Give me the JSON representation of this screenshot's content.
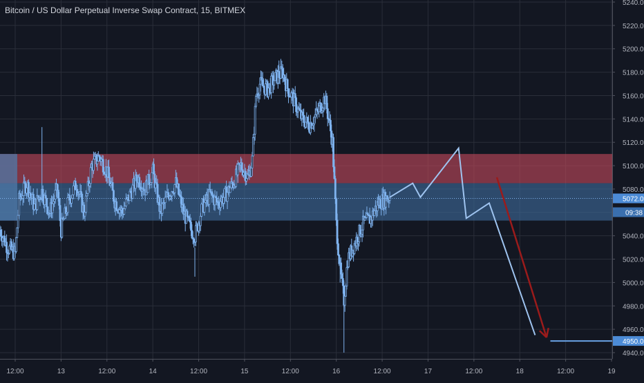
{
  "chart_data": {
    "type": "candlestick",
    "title": "Bitcoin / US Dollar Perpetual Inverse Swap Contract, 15, BITMEX",
    "ylim": [
      4935,
      5243
    ],
    "y_ticks": [
      5240,
      5220,
      5200,
      5180,
      5160,
      5140,
      5120,
      5100,
      5080,
      5060,
      5040,
      5020,
      5000,
      4980,
      4960,
      4940
    ],
    "y_tick_labels": [
      "5240.0",
      "5220.0",
      "5200.0",
      "5180.0",
      "5160.0",
      "5140.0",
      "5120.0",
      "5100.0",
      "5080.0",
      "5060.0",
      "5040.0",
      "5020.0",
      "5000.0",
      "4980.0",
      "4960.0",
      "4940.0"
    ],
    "x_time_range": [
      "12 12:00",
      "19 00:00"
    ],
    "x_ticks": [
      {
        "t": 0,
        "label": "12:00"
      },
      {
        "t": 12,
        "label": "13"
      },
      {
        "t": 24,
        "label": "12:00"
      },
      {
        "t": 36,
        "label": "14"
      },
      {
        "t": 48,
        "label": "12:00"
      },
      {
        "t": 60,
        "label": "15"
      },
      {
        "t": 72,
        "label": "12:00"
      },
      {
        "t": 84,
        "label": "16"
      },
      {
        "t": 96,
        "label": "12:00"
      },
      {
        "t": 108,
        "label": "17"
      },
      {
        "t": 120,
        "label": "12:00"
      },
      {
        "t": 132,
        "label": "18"
      },
      {
        "t": 144,
        "label": "12:00"
      },
      {
        "t": 156,
        "label": "19"
      }
    ],
    "price_path": [
      {
        "t": -4,
        "p": 5045
      },
      {
        "t": -2,
        "p": 5030
      },
      {
        "t": 0,
        "p": 5025
      },
      {
        "t": 1,
        "p": 5070
      },
      {
        "t": 3,
        "p": 5085
      },
      {
        "t": 5,
        "p": 5065
      },
      {
        "t": 7,
        "p": 5078
      },
      {
        "t": 9,
        "p": 5060
      },
      {
        "t": 11,
        "p": 5080
      },
      {
        "t": 12,
        "p": 5045
      },
      {
        "t": 14,
        "p": 5070
      },
      {
        "t": 16,
        "p": 5085
      },
      {
        "t": 18,
        "p": 5060
      },
      {
        "t": 20,
        "p": 5100
      },
      {
        "t": 22,
        "p": 5108
      },
      {
        "t": 24,
        "p": 5095
      },
      {
        "t": 26,
        "p": 5070
      },
      {
        "t": 28,
        "p": 5060
      },
      {
        "t": 30,
        "p": 5075
      },
      {
        "t": 32,
        "p": 5090
      },
      {
        "t": 34,
        "p": 5080
      },
      {
        "t": 36,
        "p": 5095
      },
      {
        "t": 38,
        "p": 5060
      },
      {
        "t": 40,
        "p": 5075
      },
      {
        "t": 42,
        "p": 5085
      },
      {
        "t": 44,
        "p": 5060
      },
      {
        "t": 46,
        "p": 5045
      },
      {
        "t": 47,
        "p": 5040
      },
      {
        "t": 49,
        "p": 5065
      },
      {
        "t": 51,
        "p": 5075
      },
      {
        "t": 53,
        "p": 5068
      },
      {
        "t": 55,
        "p": 5075
      },
      {
        "t": 57,
        "p": 5085
      },
      {
        "t": 59,
        "p": 5100
      },
      {
        "t": 61,
        "p": 5090
      },
      {
        "t": 62,
        "p": 5105
      },
      {
        "t": 63,
        "p": 5160
      },
      {
        "t": 64,
        "p": 5170
      },
      {
        "t": 66,
        "p": 5165
      },
      {
        "t": 68,
        "p": 5175
      },
      {
        "t": 70,
        "p": 5180
      },
      {
        "t": 71,
        "p": 5168
      },
      {
        "t": 73,
        "p": 5155
      },
      {
        "t": 75,
        "p": 5140
      },
      {
        "t": 77,
        "p": 5135
      },
      {
        "t": 79,
        "p": 5145
      },
      {
        "t": 81,
        "p": 5158
      },
      {
        "t": 82,
        "p": 5140
      },
      {
        "t": 83,
        "p": 5120
      },
      {
        "t": 84,
        "p": 5050
      },
      {
        "t": 85,
        "p": 5010
      },
      {
        "t": 86,
        "p": 4985
      },
      {
        "t": 87,
        "p": 5020
      },
      {
        "t": 89,
        "p": 5035
      },
      {
        "t": 91,
        "p": 5050
      },
      {
        "t": 93,
        "p": 5055
      },
      {
        "t": 95,
        "p": 5068
      },
      {
        "t": 97,
        "p": 5072
      },
      {
        "t": 98,
        "p": 5074
      }
    ],
    "current_price": 5072.0,
    "current_price_label": "5072.0",
    "countdown_label": "09:38",
    "target_price_label": "4950.0",
    "zones": [
      {
        "name": "resistance",
        "from": 5085,
        "to": 5110,
        "color": "#c0485a"
      },
      {
        "name": "range",
        "from": 5053,
        "to": 5085,
        "color": "#3d6a9a"
      }
    ],
    "projection_path": [
      {
        "t": 98,
        "p": 5073
      },
      {
        "t": 104,
        "p": 5085
      },
      {
        "t": 106,
        "p": 5073
      },
      {
        "t": 116,
        "p": 5115
      },
      {
        "t": 118,
        "p": 5055
      },
      {
        "t": 124,
        "p": 5068
      },
      {
        "t": 136,
        "p": 4955
      }
    ],
    "target_line": {
      "from_t": 140,
      "to_t": 158,
      "p": 4950
    },
    "arrow": {
      "from_t": 126,
      "from_p": 5090,
      "to_t": 139,
      "to_p": 4953
    },
    "colors": {
      "background": "#131722",
      "grid": "#2a2e39",
      "candle": "#7fb3ef",
      "projection": "#9fc4f0",
      "arrow": "#9b1b1b",
      "axis_text": "#b2b5be",
      "label_bg": "#4c8bd6"
    }
  }
}
